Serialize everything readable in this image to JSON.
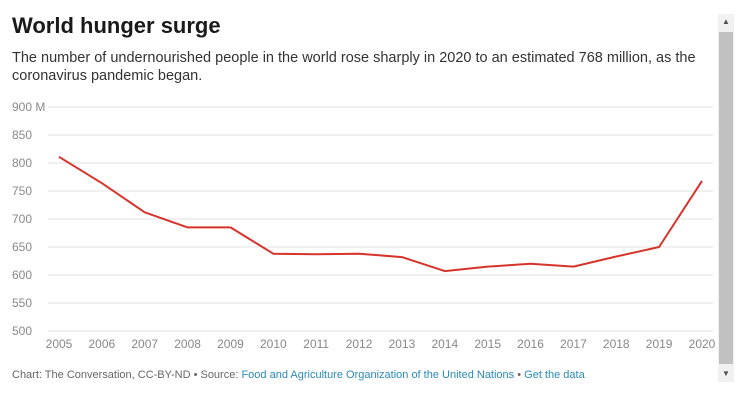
{
  "header": {
    "title": "World hunger surge",
    "subtitle": "The number of undernourished people in the world rose sharply in 2020 to an estimated 768 million, as the coronavirus pandemic began."
  },
  "chart_data": {
    "type": "line",
    "title": "World hunger surge",
    "x": [
      "2005",
      "2006",
      "2007",
      "2008",
      "2009",
      "2010",
      "2011",
      "2012",
      "2013",
      "2014",
      "2015",
      "2016",
      "2017",
      "2018",
      "2019",
      "2020"
    ],
    "series": [
      {
        "name": "",
        "values": [
          811,
          764,
          712,
          685,
          685,
          638,
          637,
          638,
          632,
          607,
          615,
          620,
          615,
          633,
          650,
          768
        ]
      }
    ],
    "y_ticks": [
      "500",
      "550",
      "600",
      "650",
      "700",
      "750",
      "800",
      "850",
      "900 M"
    ],
    "ylim": [
      500,
      900
    ],
    "grid": true,
    "line_color": "#d6342b",
    "grid_color": "#e2e2e2"
  },
  "footer": {
    "prefix": "Chart: The Conversation, CC-BY-ND • Source: ",
    "source_link": "Food and Agriculture Organization of the United Nations",
    "separator": " • ",
    "data_link": "Get the data"
  },
  "scrollbar": {
    "up_icon": "▲",
    "down_icon": "▼"
  }
}
